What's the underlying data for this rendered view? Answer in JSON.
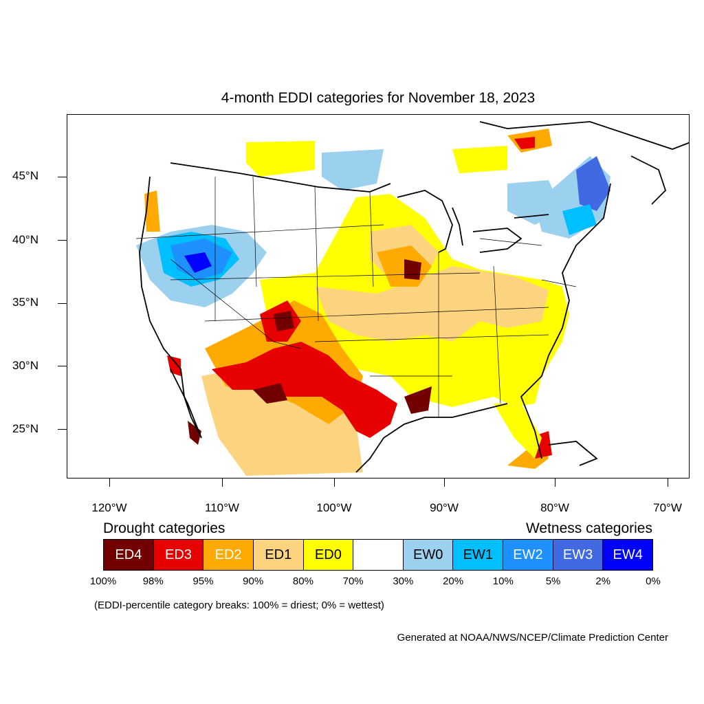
{
  "title": "4-month EDDI categories for November 18, 2023",
  "latitude_labels": [
    "45°N",
    "40°N",
    "35°N",
    "30°N",
    "25°N"
  ],
  "longitude_labels": [
    "120°W",
    "110°W",
    "100°W",
    "90°W",
    "80°W",
    "70°W"
  ],
  "legend": {
    "drought_heading": "Drought categories",
    "wetness_heading": "Wetness categories",
    "categories": [
      {
        "label": "ED4",
        "color": "#730000",
        "text_color": "#ffffff"
      },
      {
        "label": "ED3",
        "color": "#e60000",
        "text_color": "#ffffff"
      },
      {
        "label": "ED2",
        "color": "#ffaa00",
        "text_color": "#ffffff"
      },
      {
        "label": "ED1",
        "color": "#fcd37f",
        "text_color": "#000000"
      },
      {
        "label": "ED0",
        "color": "#ffff00",
        "text_color": "#000000"
      },
      {
        "label": "",
        "color": "#ffffff",
        "text_color": "#000000"
      },
      {
        "label": "EW0",
        "color": "#9bd0ef",
        "text_color": "#000000"
      },
      {
        "label": "EW1",
        "color": "#00bfff",
        "text_color": "#000000"
      },
      {
        "label": "EW2",
        "color": "#1e90ff",
        "text_color": "#ffffff"
      },
      {
        "label": "EW3",
        "color": "#4169e1",
        "text_color": "#ffffff"
      },
      {
        "label": "EW4",
        "color": "#0000ff",
        "text_color": "#ffffff"
      }
    ],
    "breaks": [
      "100%",
      "98%",
      "95%",
      "90%",
      "80%",
      "70%",
      "30%",
      "20%",
      "10%",
      "5%",
      "2%",
      "0%"
    ]
  },
  "footnote": "(EDDI-percentile category breaks: 100% = driest; 0% = wettest)",
  "credit": "Generated at NOAA/NWS/NCEP/Climate Prediction Center"
}
